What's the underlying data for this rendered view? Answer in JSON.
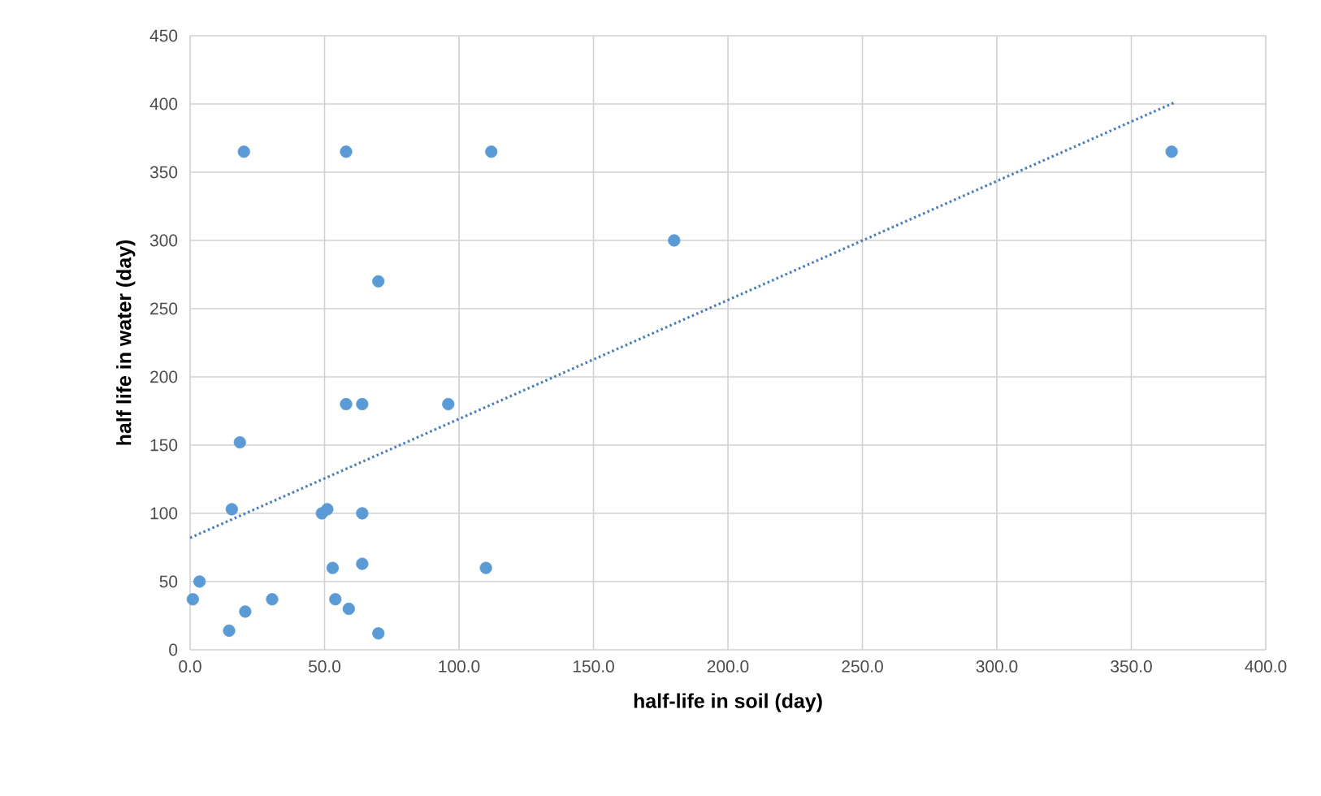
{
  "chart_data": {
    "type": "scatter",
    "xlabel": "half-life in soil (day)",
    "ylabel": "half life in water  (day)",
    "series": [
      {
        "color": "#5b9bd5",
        "marker": "circle",
        "x": [
          20,
          58,
          112,
          365,
          180,
          70,
          58,
          64,
          96,
          18.5,
          15.5,
          49,
          51,
          64,
          53,
          64,
          110,
          3.5,
          1,
          20.5,
          30.5,
          14.5,
          54,
          59,
          70
        ],
        "values": [
          365,
          365,
          365,
          365,
          300,
          270,
          180,
          180,
          180,
          152,
          103,
          100,
          103,
          100,
          60,
          63,
          60,
          50,
          37,
          28,
          37,
          14,
          37,
          30,
          12
        ]
      },
      {
        "type": "line",
        "color": "#4a7ebb",
        "line_style": "dotted",
        "marker": "none",
        "x": [
          0,
          366
        ],
        "values": [
          82,
          401
        ]
      }
    ],
    "xlim": [
      0,
      400
    ],
    "ylim": [
      0,
      450
    ],
    "xticks": [
      {
        "value": 0,
        "label": "0.0"
      },
      {
        "value": 50,
        "label": "50.0"
      },
      {
        "value": 100,
        "label": "100.0"
      },
      {
        "value": 150,
        "label": "150.0"
      },
      {
        "value": 200,
        "label": "200.0"
      },
      {
        "value": 250,
        "label": "250.0"
      },
      {
        "value": 300,
        "label": "300.0"
      },
      {
        "value": 350,
        "label": "350.0"
      },
      {
        "value": 400,
        "label": "400.0"
      }
    ],
    "yticks": [
      0,
      50,
      100,
      150,
      200,
      250,
      300,
      350,
      400,
      450
    ],
    "grid": true
  }
}
